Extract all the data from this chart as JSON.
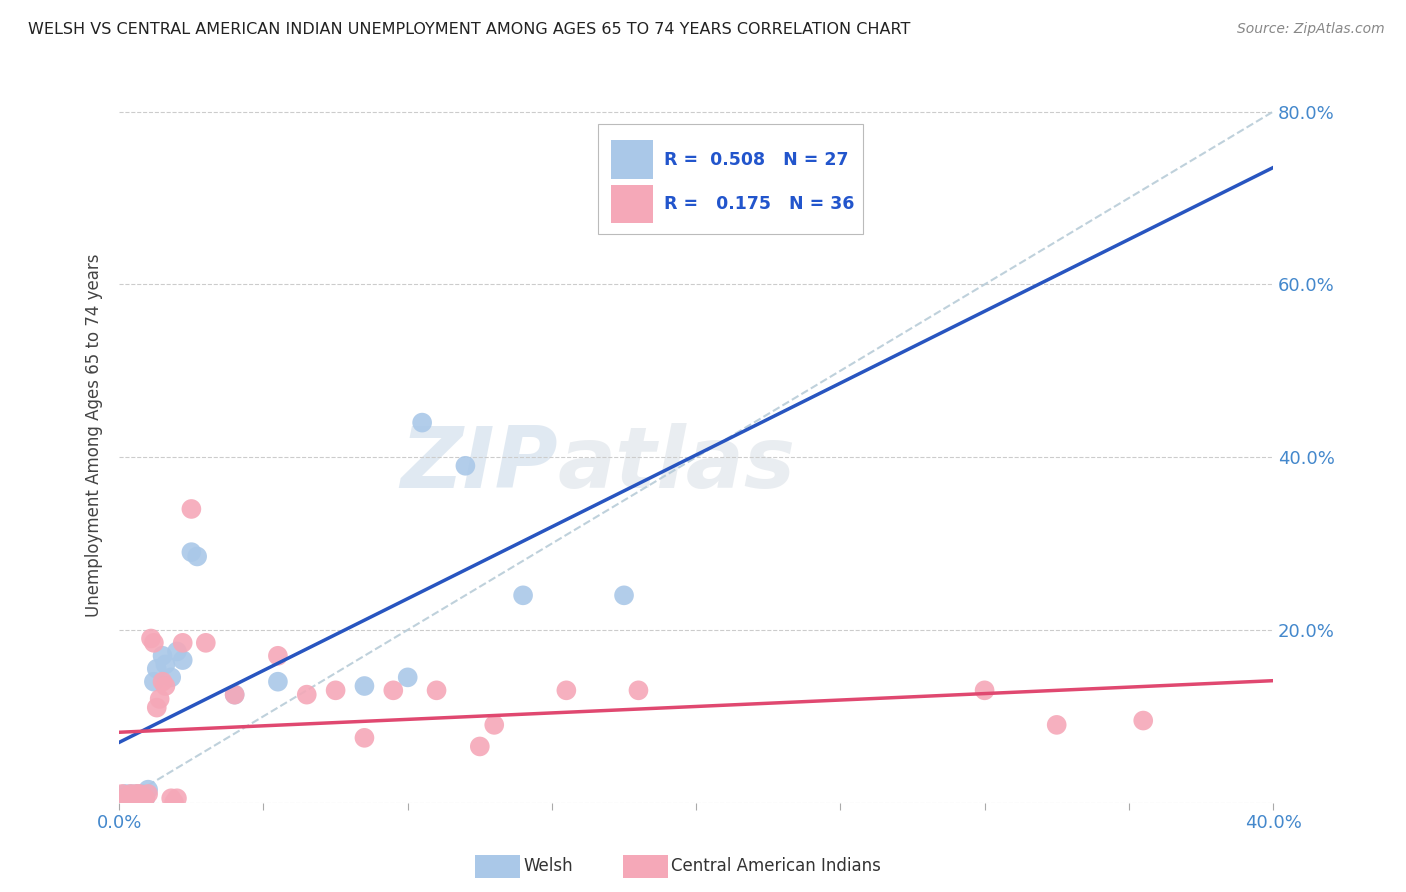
{
  "title": "WELSH VS CENTRAL AMERICAN INDIAN UNEMPLOYMENT AMONG AGES 65 TO 74 YEARS CORRELATION CHART",
  "source": "Source: ZipAtlas.com",
  "ylabel": "Unemployment Among Ages 65 to 74 years",
  "xlim": [
    0.0,
    0.4
  ],
  "ylim": [
    0.0,
    0.85
  ],
  "xticks": [
    0.0,
    0.05,
    0.1,
    0.15,
    0.2,
    0.25,
    0.3,
    0.35,
    0.4
  ],
  "yticks": [
    0.0,
    0.2,
    0.4,
    0.6,
    0.8
  ],
  "ytick_labels_right": [
    "",
    "20.0%",
    "40.0%",
    "60.0%",
    "80.0%"
  ],
  "xtick_labels": [
    "0.0%",
    "",
    "",
    "",
    "",
    "",
    "",
    "",
    "40.0%"
  ],
  "welsh_R": 0.508,
  "welsh_N": 27,
  "cai_R": 0.175,
  "cai_N": 36,
  "welsh_color": "#aac8e8",
  "cai_color": "#f5a8b8",
  "welsh_line_color": "#2855c0",
  "cai_line_color": "#e04870",
  "diagonal_color": "#b8ccd8",
  "background_color": "#ffffff",
  "welsh_points": [
    [
      0.001,
      0.005
    ],
    [
      0.002,
      0.01
    ],
    [
      0.003,
      0.005
    ],
    [
      0.004,
      0.01
    ],
    [
      0.005,
      0.005
    ],
    [
      0.006,
      0.01
    ],
    [
      0.007,
      0.005
    ],
    [
      0.008,
      0.01
    ],
    [
      0.009,
      0.005
    ],
    [
      0.01,
      0.015
    ],
    [
      0.012,
      0.14
    ],
    [
      0.013,
      0.155
    ],
    [
      0.015,
      0.17
    ],
    [
      0.016,
      0.16
    ],
    [
      0.018,
      0.145
    ],
    [
      0.02,
      0.175
    ],
    [
      0.022,
      0.165
    ],
    [
      0.025,
      0.29
    ],
    [
      0.027,
      0.285
    ],
    [
      0.04,
      0.125
    ],
    [
      0.055,
      0.14
    ],
    [
      0.085,
      0.135
    ],
    [
      0.1,
      0.145
    ],
    [
      0.105,
      0.44
    ],
    [
      0.12,
      0.39
    ],
    [
      0.14,
      0.24
    ],
    [
      0.175,
      0.24
    ]
  ],
  "cai_points": [
    [
      0.001,
      0.01
    ],
    [
      0.002,
      0.005
    ],
    [
      0.003,
      0.0
    ],
    [
      0.004,
      0.01
    ],
    [
      0.005,
      0.005
    ],
    [
      0.006,
      0.01
    ],
    [
      0.007,
      0.01
    ],
    [
      0.008,
      0.005
    ],
    [
      0.009,
      0.005
    ],
    [
      0.01,
      0.01
    ],
    [
      0.011,
      0.19
    ],
    [
      0.012,
      0.185
    ],
    [
      0.013,
      0.11
    ],
    [
      0.014,
      0.12
    ],
    [
      0.015,
      0.14
    ],
    [
      0.016,
      0.135
    ],
    [
      0.018,
      0.005
    ],
    [
      0.019,
      0.0
    ],
    [
      0.02,
      0.005
    ],
    [
      0.022,
      0.185
    ],
    [
      0.025,
      0.34
    ],
    [
      0.03,
      0.185
    ],
    [
      0.04,
      0.125
    ],
    [
      0.055,
      0.17
    ],
    [
      0.065,
      0.125
    ],
    [
      0.075,
      0.13
    ],
    [
      0.085,
      0.075
    ],
    [
      0.095,
      0.13
    ],
    [
      0.11,
      0.13
    ],
    [
      0.125,
      0.065
    ],
    [
      0.13,
      0.09
    ],
    [
      0.155,
      0.13
    ],
    [
      0.18,
      0.13
    ],
    [
      0.3,
      0.13
    ],
    [
      0.325,
      0.09
    ],
    [
      0.355,
      0.095
    ]
  ]
}
